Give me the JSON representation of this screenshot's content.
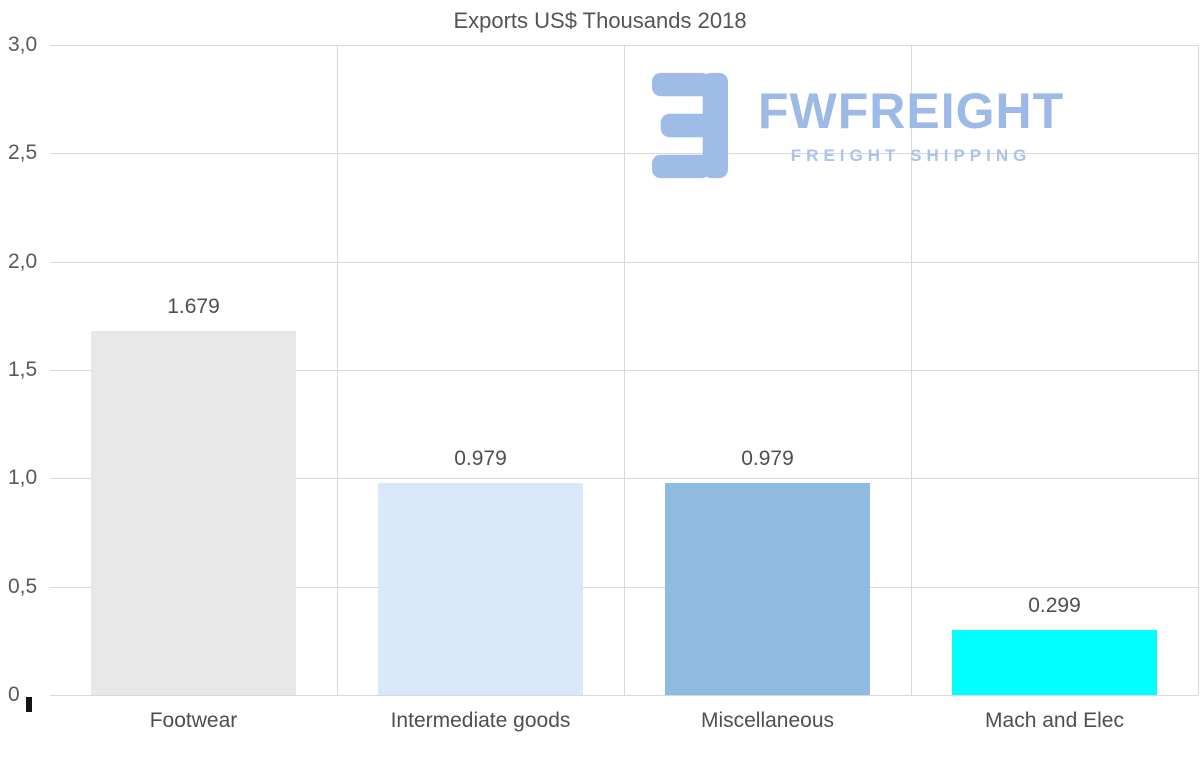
{
  "chart_data": {
    "type": "bar",
    "title": "Exports US$ Thousands 2018",
    "categories": [
      "Footwear",
      "Intermediate goods",
      "Miscellaneous",
      "Mach and Elec"
    ],
    "values": [
      1.679,
      0.979,
      0.979,
      0.299
    ],
    "value_labels": [
      "1.679",
      "0.979",
      "0.979",
      "0.299"
    ],
    "bar_colors": [
      "#e8e8e8",
      "#d9e8f8",
      "#8fbbe1",
      "#00ffff"
    ],
    "ylim": [
      0,
      3
    ],
    "ytick_values": [
      0,
      0.5,
      1.0,
      1.5,
      2.0,
      2.5,
      3.0
    ],
    "ytick_labels": [
      "0",
      "0,5",
      "1,0",
      "1,5",
      "2,0",
      "2,5",
      "3,0"
    ],
    "grid": true,
    "legend": "none",
    "xlabel": "",
    "ylabel": ""
  },
  "watermark": {
    "brand": "FWFREIGHT",
    "tagline": "FREIGHT SHIPPING",
    "brand_color": "#9fbce9"
  }
}
